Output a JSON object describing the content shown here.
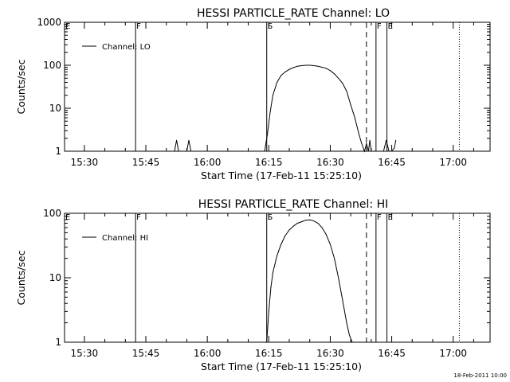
{
  "chart_data": [
    {
      "type": "line",
      "title": "HESSI PARTICLE_RATE Channel: LO",
      "xlabel": "Start Time (17-Feb-11 15:25:10)",
      "ylabel": "Counts/sec",
      "y_scale": "log",
      "ylim": [
        1,
        1000
      ],
      "xlim": [
        "15:25:10",
        "17:09:00"
      ],
      "x_ticks": [
        "15:30",
        "15:45",
        "16:00",
        "16:15",
        "16:30",
        "16:45",
        "17:00"
      ],
      "y_ticks": [
        "1",
        "10",
        "100",
        "1000"
      ],
      "legend": {
        "position": "top-left",
        "entries": [
          "Channel: LO"
        ]
      },
      "grid": false,
      "markers": [
        {
          "label": "E",
          "time": "15:25:10",
          "style": "solid"
        },
        {
          "label": "F",
          "time": "15:42:30",
          "style": "solid"
        },
        {
          "label": "S",
          "time": "16:14:30",
          "style": "solid"
        },
        {
          "label": "",
          "time": "16:38:50",
          "style": "dashed"
        },
        {
          "label": "F",
          "time": "16:41:10",
          "style": "solid"
        },
        {
          "label": "E",
          "time": "16:43:50",
          "style": "solid"
        },
        {
          "label": "",
          "time": "17:01:30",
          "style": "dotted"
        }
      ],
      "series": [
        {
          "name": "Channel: LO",
          "x": [
            "15:52:00",
            "15:52:30",
            "15:53:00",
            "15:55:00",
            "15:55:30",
            "15:56:00",
            "16:14:00",
            "16:14:40",
            "16:15:20",
            "16:16:00",
            "16:17:00",
            "16:18:00",
            "16:19:00",
            "16:20:00",
            "16:21:00",
            "16:22:00",
            "16:23:00",
            "16:24:00",
            "16:25:00",
            "16:26:00",
            "16:27:00",
            "16:28:00",
            "16:29:00",
            "16:30:00",
            "16:31:00",
            "16:32:00",
            "16:33:00",
            "16:34:00",
            "16:35:00",
            "16:36:00",
            "16:37:00",
            "16:37:40",
            "16:38:20",
            "16:38:50",
            "16:39:20",
            "16:39:40",
            "16:40:00",
            "16:40:20",
            "16:43:00",
            "16:43:40",
            "16:44:20",
            "16:45:00",
            "16:45:40",
            "16:46:00"
          ],
          "values": [
            1,
            1.8,
            1,
            1,
            1.8,
            1,
            1,
            2.5,
            8,
            20,
            40,
            58,
            70,
            80,
            88,
            95,
            98,
            100,
            100,
            98,
            95,
            90,
            85,
            75,
            63,
            50,
            38,
            25,
            12,
            6,
            2.5,
            1.5,
            1,
            1.5,
            1,
            1.8,
            1,
            1,
            1,
            1.8,
            1,
            1,
            1.2,
            1.8
          ]
        }
      ]
    },
    {
      "type": "line",
      "title": "HESSI PARTICLE_RATE Channel: HI",
      "xlabel": "Start Time (17-Feb-11 15:25:10)",
      "ylabel": "Counts/sec",
      "y_scale": "log",
      "ylim": [
        1,
        100
      ],
      "xlim": [
        "15:25:10",
        "17:09:00"
      ],
      "x_ticks": [
        "15:30",
        "15:45",
        "16:00",
        "16:15",
        "16:30",
        "16:45",
        "17:00"
      ],
      "y_ticks": [
        "1",
        "10",
        "100"
      ],
      "legend": {
        "position": "top-left",
        "entries": [
          "Channel: HI"
        ]
      },
      "grid": false,
      "markers": [
        {
          "label": "E",
          "time": "15:25:10",
          "style": "solid"
        },
        {
          "label": "F",
          "time": "15:42:30",
          "style": "solid"
        },
        {
          "label": "S",
          "time": "16:14:30",
          "style": "solid"
        },
        {
          "label": "",
          "time": "16:38:50",
          "style": "dashed"
        },
        {
          "label": "F",
          "time": "16:41:10",
          "style": "solid"
        },
        {
          "label": "E",
          "time": "16:43:50",
          "style": "solid"
        },
        {
          "label": "",
          "time": "17:01:30",
          "style": "dotted"
        }
      ],
      "series": [
        {
          "name": "Channel: HI",
          "x": [
            "16:14:30",
            "16:15:00",
            "16:15:30",
            "16:16:00",
            "16:17:00",
            "16:18:00",
            "16:19:00",
            "16:20:00",
            "16:21:00",
            "16:22:00",
            "16:23:00",
            "16:24:00",
            "16:25:00",
            "16:26:00",
            "16:27:00",
            "16:28:00",
            "16:29:00",
            "16:30:00",
            "16:31:00",
            "16:32:00",
            "16:33:00",
            "16:34:00",
            "16:34:40",
            "16:35:20"
          ],
          "values": [
            1,
            3,
            7,
            12,
            22,
            33,
            45,
            55,
            63,
            70,
            74,
            78,
            79,
            76,
            70,
            60,
            47,
            33,
            20,
            10,
            4.5,
            2,
            1.3,
            1
          ]
        }
      ]
    }
  ],
  "timestamp": "18-Feb-2011 10:00"
}
